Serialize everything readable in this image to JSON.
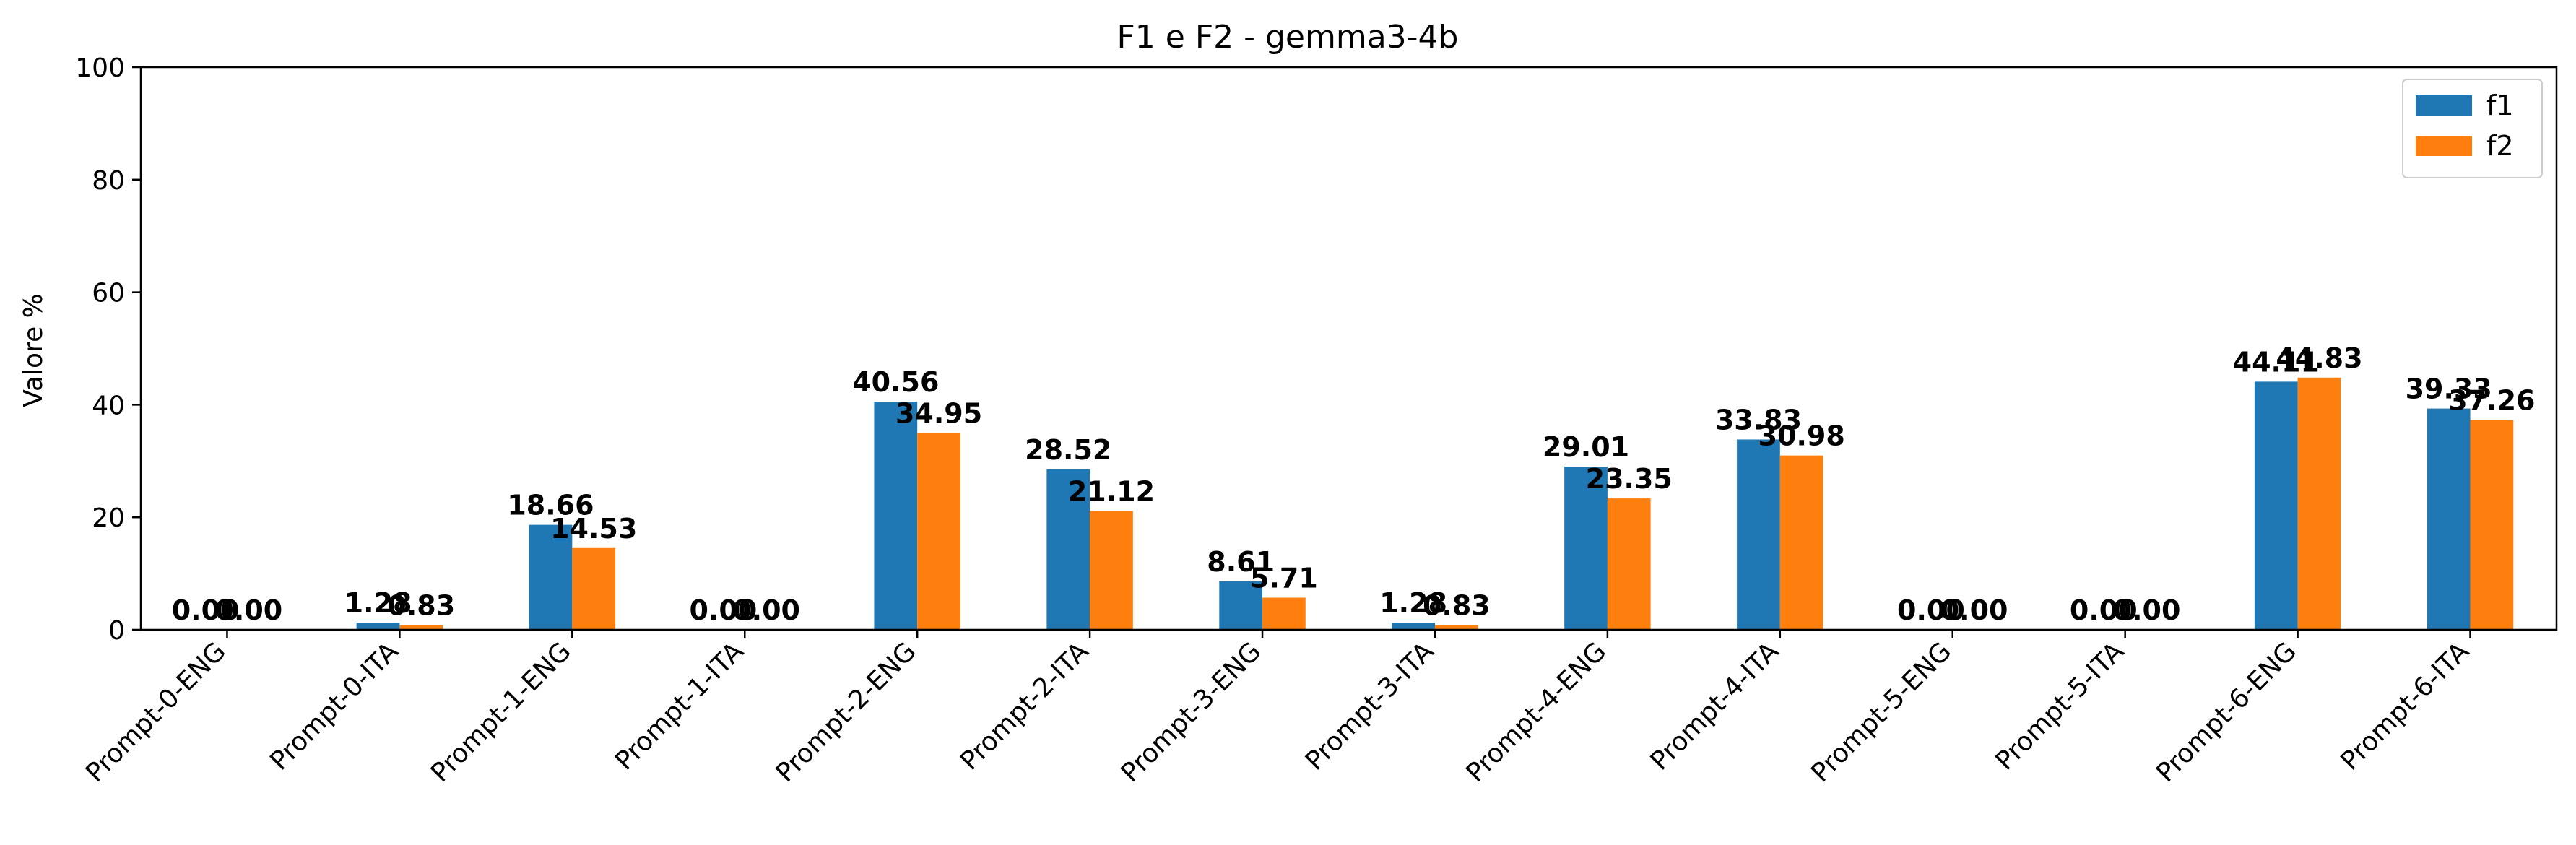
{
  "chart_data": {
    "type": "bar",
    "title": "F1 e F2 - gemma3-4b",
    "xlabel": "",
    "ylabel": "Valore %",
    "ylim": [
      0,
      100
    ],
    "yticks": [
      "0",
      "20",
      "40",
      "60",
      "80",
      "100"
    ],
    "grid": false,
    "legend_position": "top-right",
    "categories": [
      "Prompt-0-ENG",
      "Prompt-0-ITA",
      "Prompt-1-ENG",
      "Prompt-1-ITA",
      "Prompt-2-ENG",
      "Prompt-2-ITA",
      "Prompt-3-ENG",
      "Prompt-3-ITA",
      "Prompt-4-ENG",
      "Prompt-4-ITA",
      "Prompt-5-ENG",
      "Prompt-5-ITA",
      "Prompt-6-ENG",
      "Prompt-6-ITA"
    ],
    "series": [
      {
        "name": "f1",
        "color": "#1f77b4",
        "values": [
          0.0,
          1.28,
          18.66,
          0.0,
          40.56,
          28.52,
          8.61,
          1.28,
          29.01,
          33.83,
          0.0,
          0.0,
          44.11,
          39.33
        ],
        "labels": [
          "0.00",
          "1.28",
          "18.66",
          "0.00",
          "40.56",
          "28.52",
          "8.61",
          "1.28",
          "29.01",
          "33.83",
          "0.00",
          "0.00",
          "44.11",
          "39.33"
        ]
      },
      {
        "name": "f2",
        "color": "#ff7f0e",
        "values": [
          0.0,
          0.83,
          14.53,
          0.0,
          34.95,
          21.12,
          5.71,
          0.83,
          23.35,
          30.98,
          0.0,
          0.0,
          44.83,
          37.26
        ],
        "labels": [
          "0.00",
          "0.83",
          "14.53",
          "0.00",
          "34.95",
          "21.12",
          "5.71",
          "0.83",
          "23.35",
          "30.98",
          "0.00",
          "0.00",
          "44.83",
          "37.26"
        ]
      }
    ]
  }
}
